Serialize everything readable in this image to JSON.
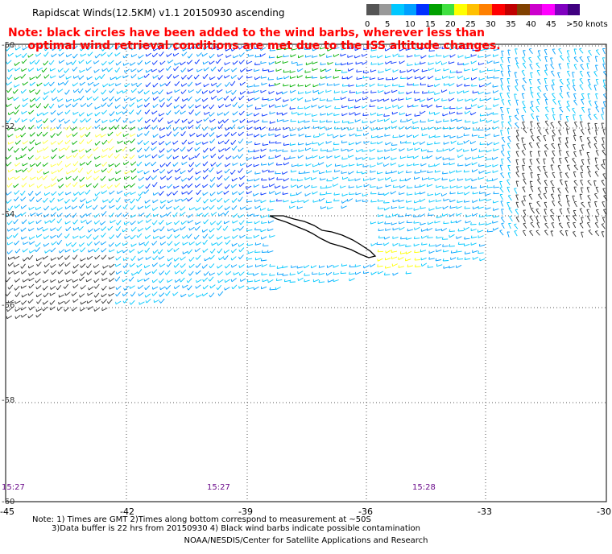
{
  "title": "Rapidscat Winds(12.5KM) v1.1 20150930 ascending",
  "note_lines": [
    "Note: black circles have been added to the wind barbs, wherever less than",
    "     optimal wind retrieval conditions are met due to the ISS altitude changes."
  ],
  "scale": {
    "labels": [
      "0",
      "5",
      "10",
      "15",
      "20",
      "25",
      "30",
      "35",
      "40",
      "45",
      ">50 knots"
    ],
    "colors": [
      "#555555",
      "#999999",
      "#00c8ff",
      "#00a0ff",
      "#0030ff",
      "#00a000",
      "#40e040",
      "#ffff00",
      "#ffc000",
      "#ff8000",
      "#ff0000",
      "#c00000",
      "#804000",
      "#cc00cc",
      "#ff00ff",
      "#8000c0",
      "#400080"
    ]
  },
  "map": {
    "lat_labels": [
      "-50",
      "-52",
      "-54",
      "-56",
      "-58",
      "-60"
    ],
    "lon_labels": [
      "-45",
      "-42",
      "-39",
      "-36",
      "-33",
      "-30"
    ],
    "times": [
      "15:27",
      "15:27",
      "15:28"
    ]
  },
  "footer": {
    "line1": "Note: 1) Times are GMT 2)Times along bottom correspond to measurement at ~50S",
    "line2": "3)Data buffer is 22 hrs from 20150930 4) Black wind barbs indicate possible contamination",
    "credit": "NOAA/NESDIS/Center for Satellite Applications and Research"
  }
}
